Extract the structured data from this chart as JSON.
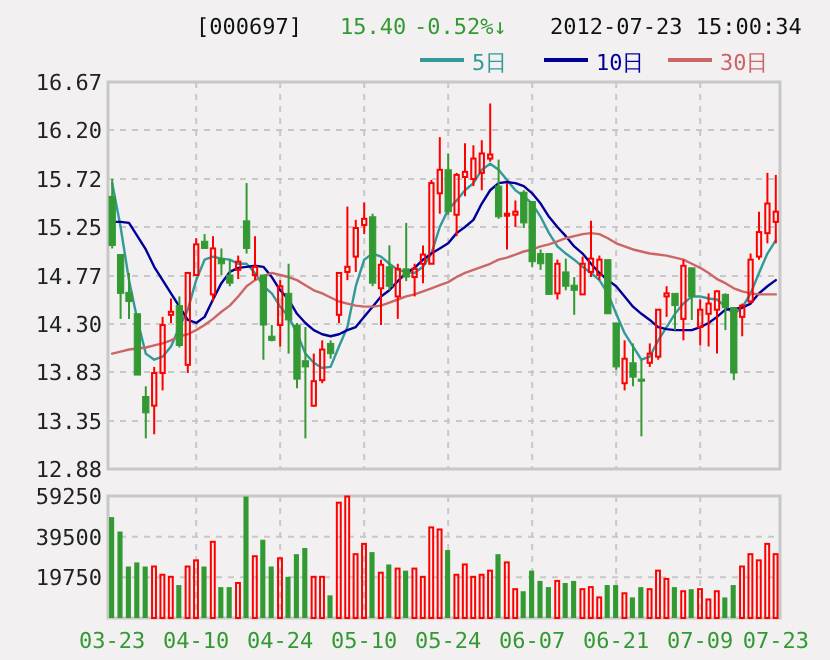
{
  "chart_data": [
    {
      "type": "candlestick",
      "title": "[000697]",
      "annotations": [
        "15.40",
        "-0.52%↓",
        "2012-07-23 15:00:34"
      ],
      "ohlc": [
        [
          15.55,
          15.72,
          15.04,
          15.07
        ],
        [
          14.98,
          14.98,
          14.35,
          14.6
        ],
        [
          14.61,
          14.8,
          14.35,
          14.52
        ],
        [
          14.4,
          14.4,
          13.8,
          13.8
        ],
        [
          13.59,
          13.69,
          13.18,
          13.43
        ],
        [
          13.5,
          13.88,
          13.22,
          13.82
        ],
        [
          13.82,
          14.37,
          13.65,
          14.29
        ],
        [
          14.39,
          14.55,
          14.31,
          14.42
        ],
        [
          14.48,
          14.57,
          14.07,
          14.09
        ],
        [
          13.9,
          14.81,
          13.82,
          14.8
        ],
        [
          14.78,
          15.14,
          14.78,
          15.08
        ],
        [
          15.11,
          15.18,
          15.04,
          15.04
        ],
        [
          14.59,
          15.16,
          14.52,
          15.04
        ],
        [
          14.94,
          15.04,
          14.78,
          14.89
        ],
        [
          14.78,
          14.93,
          14.67,
          14.7
        ],
        [
          14.83,
          14.97,
          14.74,
          14.91
        ],
        [
          15.31,
          15.68,
          14.99,
          15.04
        ],
        [
          14.78,
          15.16,
          14.73,
          14.86
        ],
        [
          14.78,
          14.78,
          13.95,
          14.29
        ],
        [
          14.18,
          14.29,
          14.13,
          14.14
        ],
        [
          14.29,
          14.73,
          14.08,
          14.67
        ],
        [
          14.6,
          14.89,
          14.01,
          14.34
        ],
        [
          14.29,
          14.31,
          13.67,
          13.76
        ],
        [
          13.94,
          14.27,
          13.18,
          13.88
        ],
        [
          13.5,
          14.01,
          13.49,
          13.74
        ],
        [
          13.75,
          14.14,
          13.72,
          14.05
        ],
        [
          14.11,
          14.14,
          13.96,
          14.01
        ],
        [
          14.39,
          14.8,
          14.31,
          14.8
        ],
        [
          14.81,
          15.45,
          14.73,
          14.86
        ],
        [
          14.96,
          15.32,
          14.81,
          15.24
        ],
        [
          15.27,
          15.49,
          15.18,
          15.33
        ],
        [
          15.35,
          15.38,
          14.67,
          14.7
        ],
        [
          14.65,
          14.93,
          14.29,
          14.88
        ],
        [
          14.86,
          15.07,
          14.63,
          14.67
        ],
        [
          14.57,
          14.89,
          14.35,
          14.84
        ],
        [
          14.84,
          15.29,
          14.72,
          14.76
        ],
        [
          14.76,
          14.89,
          14.57,
          14.84
        ],
        [
          14.89,
          15.07,
          14.7,
          14.98
        ],
        [
          14.89,
          15.71,
          14.89,
          15.68
        ],
        [
          15.58,
          16.13,
          15.38,
          15.81
        ],
        [
          15.81,
          15.97,
          15.37,
          15.4
        ],
        [
          15.37,
          15.78,
          15.16,
          15.76
        ],
        [
          15.74,
          16.07,
          15.55,
          15.79
        ],
        [
          15.72,
          16.05,
          15.65,
          15.92
        ],
        [
          15.78,
          16.1,
          15.61,
          15.97
        ],
        [
          15.92,
          16.46,
          15.89,
          15.96
        ],
        [
          15.65,
          15.91,
          15.33,
          15.35
        ],
        [
          15.37,
          15.68,
          15.03,
          15.38
        ],
        [
          15.37,
          15.51,
          15.25,
          15.4
        ],
        [
          15.59,
          15.61,
          15.24,
          15.29
        ],
        [
          15.5,
          15.5,
          14.86,
          14.91
        ],
        [
          14.99,
          15.03,
          14.83,
          14.89
        ],
        [
          14.99,
          14.99,
          14.59,
          14.59
        ],
        [
          14.6,
          14.93,
          14.54,
          14.89
        ],
        [
          14.81,
          14.94,
          14.63,
          14.67
        ],
        [
          14.68,
          14.76,
          14.39,
          14.63
        ],
        [
          14.59,
          14.96,
          14.59,
          14.89
        ],
        [
          14.81,
          15.31,
          14.76,
          14.94
        ],
        [
          14.78,
          14.97,
          14.73,
          14.93
        ],
        [
          14.93,
          14.93,
          14.4,
          14.4
        ],
        [
          14.31,
          14.31,
          13.85,
          13.88
        ],
        [
          13.72,
          14.14,
          13.65,
          13.96
        ],
        [
          13.92,
          14.11,
          13.69,
          13.78
        ],
        [
          13.76,
          13.95,
          13.2,
          13.74
        ],
        [
          13.92,
          14.11,
          13.88,
          14.01
        ],
        [
          13.98,
          14.44,
          13.95,
          14.44
        ],
        [
          14.57,
          14.67,
          14.37,
          14.6
        ],
        [
          14.6,
          14.6,
          14.24,
          14.48
        ],
        [
          14.35,
          14.93,
          14.14,
          14.87
        ],
        [
          14.85,
          14.85,
          14.34,
          14.57
        ],
        [
          14.27,
          14.54,
          14.09,
          14.44
        ],
        [
          14.4,
          14.6,
          14.08,
          14.5
        ],
        [
          14.44,
          14.63,
          14.01,
          14.62
        ],
        [
          14.59,
          14.6,
          14.24,
          14.46
        ],
        [
          14.46,
          14.46,
          13.75,
          13.82
        ],
        [
          14.37,
          14.5,
          14.18,
          14.48
        ],
        [
          14.52,
          14.99,
          14.5,
          14.93
        ],
        [
          14.96,
          15.4,
          14.93,
          15.2
        ],
        [
          15.19,
          15.78,
          15.09,
          15.48
        ],
        [
          15.3,
          15.76,
          15.09,
          15.4
        ]
      ],
      "colors": [
        "#339933",
        "#339933",
        "#339933",
        "#339933",
        "#339933",
        "#ff0000",
        "#ff0000",
        "#ff0000",
        "#339933",
        "#ff0000",
        "#ff0000",
        "#339933",
        "#ff0000",
        "#339933",
        "#339933",
        "#ff0000",
        "#339933",
        "#ff0000",
        "#339933",
        "#339933",
        "#ff0000",
        "#339933",
        "#339933",
        "#339933",
        "#ff0000",
        "#ff0000",
        "#339933",
        "#ff0000",
        "#ff0000",
        "#ff0000",
        "#ff0000",
        "#339933",
        "#ff0000",
        "#339933",
        "#ff0000",
        "#339933",
        "#ff0000",
        "#ff0000",
        "#ff0000",
        "#ff0000",
        "#339933",
        "#ff0000",
        "#ff0000",
        "#ff0000",
        "#ff0000",
        "#ff0000",
        "#339933",
        "#ff0000",
        "#ff0000",
        "#339933",
        "#339933",
        "#339933",
        "#339933",
        "#ff0000",
        "#339933",
        "#339933",
        "#ff0000",
        "#ff0000",
        "#ff0000",
        "#339933",
        "#339933",
        "#ff0000",
        "#339933",
        "#339933",
        "#ff0000",
        "#ff0000",
        "#ff0000",
        "#339933",
        "#ff0000",
        "#339933",
        "#ff0000",
        "#ff0000",
        "#ff0000",
        "#339933",
        "#339933",
        "#ff0000",
        "#ff0000",
        "#ff0000",
        "#ff0000",
        "#ff0000"
      ],
      "series": [
        {
          "name": "5日",
          "type": "line",
          "color": "#339999",
          "values": [
            15.68,
            15.25,
            14.73,
            14.34,
            14.01,
            13.95,
            13.98,
            14.08,
            14.27,
            14.44,
            14.73,
            14.93,
            14.96,
            14.94,
            14.93,
            14.89,
            14.89,
            14.8,
            14.67,
            14.6,
            14.47,
            14.37,
            14.21,
            14.01,
            13.92,
            13.87,
            13.88,
            14.08,
            14.27,
            14.67,
            14.93,
            14.99,
            14.96,
            14.89,
            14.83,
            14.81,
            14.8,
            14.86,
            14.99,
            15.25,
            15.42,
            15.51,
            15.61,
            15.68,
            15.81,
            15.87,
            15.81,
            15.71,
            15.61,
            15.55,
            15.48,
            15.35,
            15.19,
            15.06,
            14.99,
            14.93,
            14.86,
            14.8,
            14.73,
            14.6,
            14.4,
            14.21,
            14.08,
            13.95,
            13.98,
            14.14,
            14.27,
            14.4,
            14.5,
            14.57,
            14.57,
            14.55,
            14.54,
            14.47,
            14.4,
            14.46,
            14.6,
            14.8,
            14.99,
            15.12
          ]
        },
        {
          "name": "10日",
          "type": "line",
          "color": "#000099",
          "values": [
            15.3,
            15.3,
            15.29,
            15.16,
            15.03,
            14.86,
            14.73,
            14.6,
            14.47,
            14.34,
            14.31,
            14.37,
            14.54,
            14.7,
            14.81,
            14.85,
            14.86,
            14.87,
            14.86,
            14.76,
            14.63,
            14.54,
            14.4,
            14.31,
            14.24,
            14.2,
            14.18,
            14.2,
            14.24,
            14.27,
            14.37,
            14.47,
            14.57,
            14.63,
            14.72,
            14.8,
            14.85,
            14.93,
            14.99,
            15.04,
            15.09,
            15.19,
            15.25,
            15.32,
            15.48,
            15.61,
            15.68,
            15.69,
            15.68,
            15.65,
            15.58,
            15.48,
            15.35,
            15.25,
            15.16,
            15.06,
            14.99,
            14.89,
            14.8,
            14.73,
            14.67,
            14.57,
            14.47,
            14.4,
            14.34,
            14.27,
            14.25,
            14.24,
            14.24,
            14.24,
            14.27,
            14.31,
            14.37,
            14.44,
            14.45,
            14.46,
            14.5,
            14.6,
            14.67,
            14.73
          ]
        },
        {
          "name": "30日",
          "type": "line",
          "color": "#cc6666",
          "values": [
            14.01,
            14.03,
            14.05,
            14.06,
            14.07,
            14.09,
            14.11,
            14.14,
            14.18,
            14.2,
            14.24,
            14.29,
            14.35,
            14.42,
            14.48,
            14.57,
            14.67,
            14.73,
            14.77,
            14.8,
            14.78,
            14.76,
            14.73,
            14.68,
            14.63,
            14.6,
            14.56,
            14.52,
            14.5,
            14.48,
            14.47,
            14.47,
            14.48,
            14.51,
            14.54,
            14.57,
            14.59,
            14.62,
            14.65,
            14.68,
            14.71,
            14.76,
            14.8,
            14.83,
            14.86,
            14.89,
            14.93,
            14.95,
            14.98,
            15.01,
            15.03,
            15.06,
            15.08,
            15.11,
            15.14,
            15.16,
            15.18,
            15.19,
            15.18,
            15.14,
            15.09,
            15.06,
            15.03,
            15.01,
            14.99,
            14.98,
            14.97,
            14.95,
            14.93,
            14.89,
            14.85,
            14.8,
            14.74,
            14.7,
            14.65,
            14.62,
            14.6,
            14.59,
            14.59,
            14.59
          ]
        }
      ],
      "ylim": [
        12.88,
        16.67
      ],
      "yticks": [
        16.67,
        {
          "value": 16.2,
          "label": "16.20"
        },
        15.72,
        15.25,
        14.77,
        {
          "value": 14.3,
          "label": "14.30"
        },
        13.83,
        13.35,
        12.88
      ],
      "grid": true,
      "legend": "top right",
      "tick_labels": "y"
    },
    {
      "type": "bar",
      "categories": [
        "03-23",
        null,
        null,
        null,
        null,
        null,
        null,
        null,
        null,
        null,
        "04-10",
        null,
        null,
        null,
        null,
        null,
        null,
        null,
        null,
        null,
        "04-24",
        null,
        null,
        null,
        null,
        null,
        null,
        null,
        null,
        null,
        "05-10",
        null,
        null,
        null,
        null,
        null,
        null,
        null,
        null,
        null,
        "05-24",
        null,
        null,
        null,
        null,
        null,
        null,
        null,
        null,
        null,
        "06-07",
        null,
        null,
        null,
        null,
        null,
        null,
        null,
        null,
        null,
        "06-21",
        null,
        null,
        null,
        null,
        null,
        null,
        null,
        null,
        null,
        "07-09",
        null,
        null,
        null,
        null,
        null,
        null,
        null,
        null,
        "07-23"
      ],
      "values": [
        49000,
        42000,
        25000,
        27000,
        25000,
        25000,
        21000,
        20000,
        16000,
        25000,
        28000,
        25000,
        37000,
        15000,
        15000,
        17000,
        59000,
        30000,
        38000,
        25000,
        29000,
        20000,
        31000,
        34000,
        20000,
        20000,
        11000,
        56000,
        59000,
        31000,
        36000,
        32000,
        22000,
        26000,
        24000,
        23000,
        24000,
        20000,
        44000,
        43000,
        33000,
        21000,
        26000,
        20000,
        21000,
        23000,
        31000,
        27000,
        14000,
        13000,
        23000,
        18000,
        15000,
        18000,
        17000,
        18000,
        14000,
        15000,
        10000,
        16000,
        16000,
        12000,
        10000,
        15000,
        14000,
        23000,
        19000,
        15000,
        13000,
        14000,
        14000,
        9000,
        13000,
        10000,
        16000,
        25000,
        31000,
        28000,
        36000,
        31000
      ],
      "colors": [
        "#339933",
        "#339933",
        "#339933",
        "#339933",
        "#339933",
        "#ff0000",
        "#ff0000",
        "#ff0000",
        "#339933",
        "#ff0000",
        "#ff0000",
        "#339933",
        "#ff0000",
        "#339933",
        "#339933",
        "#ff0000",
        "#339933",
        "#ff0000",
        "#339933",
        "#339933",
        "#ff0000",
        "#339933",
        "#339933",
        "#339933",
        "#ff0000",
        "#ff0000",
        "#339933",
        "#ff0000",
        "#ff0000",
        "#ff0000",
        "#ff0000",
        "#339933",
        "#ff0000",
        "#339933",
        "#ff0000",
        "#339933",
        "#ff0000",
        "#ff0000",
        "#ff0000",
        "#ff0000",
        "#339933",
        "#ff0000",
        "#ff0000",
        "#ff0000",
        "#ff0000",
        "#ff0000",
        "#339933",
        "#ff0000",
        "#ff0000",
        "#339933",
        "#339933",
        "#339933",
        "#339933",
        "#ff0000",
        "#339933",
        "#339933",
        "#ff0000",
        "#ff0000",
        "#ff0000",
        "#339933",
        "#339933",
        "#ff0000",
        "#339933",
        "#339933",
        "#ff0000",
        "#ff0000",
        "#ff0000",
        "#339933",
        "#ff0000",
        "#339933",
        "#ff0000",
        "#ff0000",
        "#ff0000",
        "#339933",
        "#339933",
        "#ff0000",
        "#ff0000",
        "#ff0000",
        "#ff0000",
        "#ff0000"
      ],
      "ylim": [
        0,
        59250
      ],
      "yticks": [
        19750,
        39500,
        59250
      ],
      "grid": true
    }
  ]
}
